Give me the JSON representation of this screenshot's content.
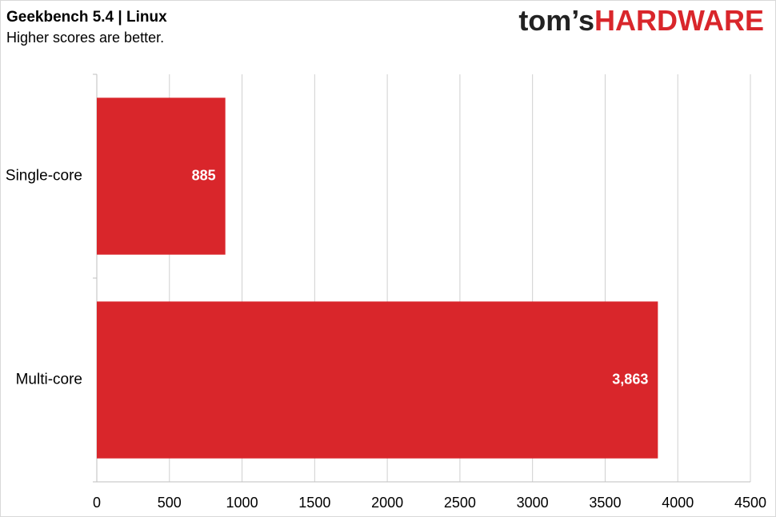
{
  "brand_prefix": "tom’s",
  "brand_name": "HARDWARE",
  "chart_data": {
    "type": "barh",
    "title": "Geekbench 5.4 | Linux",
    "subtitle": "Higher scores are better.",
    "categories": [
      "Single-core",
      "Multi-core"
    ],
    "values": [
      885,
      3863
    ],
    "value_labels": [
      "885",
      "3,863"
    ],
    "color": "#d9262b",
    "xlim": [
      0,
      4500
    ],
    "xticks": [
      0,
      500,
      1000,
      1500,
      2000,
      2500,
      3000,
      3500,
      4000,
      4500
    ],
    "grid": true
  }
}
